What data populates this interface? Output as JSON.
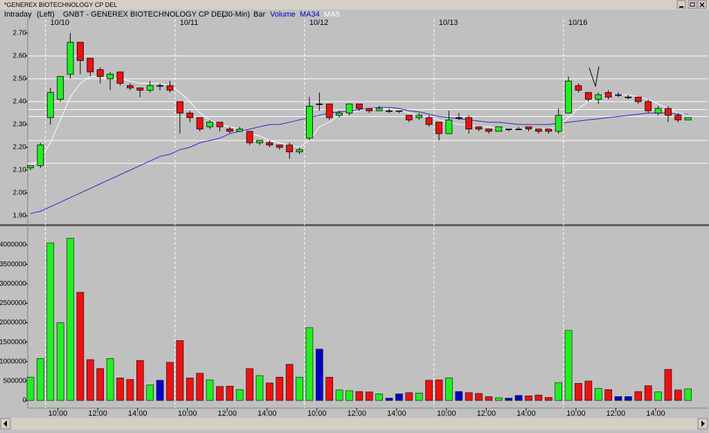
{
  "window_title": "*GENEREX BIOTECHNOLOGY CP DEL",
  "header": {
    "mode": "Intraday",
    "side": "(Left)",
    "symbol": "GNBT - GENEREX BIOTECHNOLOGY CP DEL",
    "interval": "(30-Min)",
    "style": "Bar"
  },
  "chart_data": [
    {
      "type": "candlestick",
      "day_labels": [
        "10/10",
        "10/11",
        "10/12",
        "10/13",
        "10/16"
      ],
      "open": [
        2.11,
        2.12,
        2.33,
        2.41,
        2.52,
        2.66,
        2.59,
        2.54,
        2.5,
        2.53,
        2.47,
        2.46,
        2.45,
        2.47,
        2.47,
        2.4,
        2.35,
        2.33,
        2.29,
        2.31,
        2.28,
        2.27,
        2.27,
        2.22,
        2.22,
        2.21,
        2.21,
        2.18,
        2.24,
        2.39,
        2.39,
        2.34,
        2.35,
        2.39,
        2.37,
        2.36,
        2.36,
        2.36,
        2.34,
        2.33,
        2.33,
        2.31,
        2.26,
        2.33,
        2.33,
        2.29,
        2.28,
        2.27,
        2.28,
        2.28,
        2.29,
        2.28,
        2.28,
        2.27,
        2.35,
        2.47,
        2.44,
        2.41,
        2.44,
        2.43,
        2.42,
        2.42,
        2.4,
        2.35,
        2.37,
        2.34,
        2.32
      ],
      "high": [
        2.12,
        2.22,
        2.46,
        2.51,
        2.7,
        2.66,
        2.59,
        2.55,
        2.53,
        2.53,
        2.48,
        2.46,
        2.49,
        2.48,
        2.49,
        2.4,
        2.36,
        2.33,
        2.32,
        2.31,
        2.29,
        2.29,
        2.27,
        2.23,
        2.23,
        2.21,
        2.22,
        2.2,
        2.42,
        2.44,
        2.39,
        2.36,
        2.39,
        2.39,
        2.37,
        2.38,
        2.37,
        2.36,
        2.34,
        2.35,
        2.34,
        2.31,
        2.36,
        2.35,
        2.34,
        2.29,
        2.28,
        2.29,
        2.28,
        2.29,
        2.29,
        2.28,
        2.28,
        2.37,
        2.51,
        2.48,
        2.44,
        2.44,
        2.45,
        2.44,
        2.43,
        2.42,
        2.41,
        2.38,
        2.38,
        2.35,
        2.33
      ],
      "low": [
        2.1,
        2.11,
        2.3,
        2.4,
        2.5,
        2.52,
        2.51,
        2.48,
        2.45,
        2.47,
        2.45,
        2.42,
        2.44,
        2.45,
        2.44,
        2.26,
        2.31,
        2.27,
        2.28,
        2.27,
        2.26,
        2.27,
        2.21,
        2.21,
        2.2,
        2.19,
        2.15,
        2.17,
        2.23,
        2.36,
        2.32,
        2.33,
        2.34,
        2.36,
        2.35,
        2.36,
        2.35,
        2.35,
        2.31,
        2.32,
        2.29,
        2.23,
        2.26,
        2.32,
        2.26,
        2.27,
        2.26,
        2.27,
        2.27,
        2.28,
        2.27,
        2.26,
        2.26,
        2.26,
        2.35,
        2.44,
        2.4,
        2.39,
        2.41,
        2.42,
        2.41,
        2.39,
        2.35,
        2.34,
        2.31,
        2.31,
        2.32
      ],
      "close": [
        2.12,
        2.21,
        2.44,
        2.51,
        2.66,
        2.58,
        2.53,
        2.51,
        2.52,
        2.48,
        2.46,
        2.45,
        2.47,
        2.47,
        2.45,
        2.35,
        2.33,
        2.28,
        2.31,
        2.29,
        2.27,
        2.28,
        2.22,
        2.23,
        2.21,
        2.2,
        2.18,
        2.19,
        2.38,
        2.39,
        2.33,
        2.35,
        2.39,
        2.37,
        2.36,
        2.37,
        2.36,
        2.36,
        2.32,
        2.34,
        2.3,
        2.26,
        2.32,
        2.33,
        2.28,
        2.28,
        2.27,
        2.29,
        2.28,
        2.28,
        2.28,
        2.27,
        2.27,
        2.34,
        2.49,
        2.45,
        2.41,
        2.43,
        2.42,
        2.43,
        2.42,
        2.4,
        2.36,
        2.37,
        2.34,
        2.32,
        2.33
      ],
      "up_color": "#22ee22",
      "down_color": "#ee1111",
      "flat_color": "#0000cc",
      "series": [
        {
          "name": "MA34",
          "color": "#2222cc",
          "values": [
            1.91,
            1.92,
            1.94,
            1.96,
            1.98,
            2.0,
            2.02,
            2.04,
            2.06,
            2.08,
            2.1,
            2.12,
            2.14,
            2.16,
            2.17,
            2.19,
            2.2,
            2.22,
            2.23,
            2.24,
            2.26,
            2.27,
            2.28,
            2.29,
            2.3,
            2.3,
            2.31,
            2.32,
            2.33,
            2.34,
            2.35,
            2.355,
            2.36,
            2.365,
            2.37,
            2.375,
            2.375,
            2.37,
            2.36,
            2.355,
            2.345,
            2.335,
            2.33,
            2.325,
            2.32,
            2.315,
            2.31,
            2.31,
            2.305,
            2.3,
            2.3,
            2.3,
            2.3,
            2.305,
            2.31,
            2.315,
            2.32,
            2.325,
            2.33,
            2.335,
            2.34,
            2.345,
            2.35,
            2.35,
            2.35,
            2.345,
            2.345
          ]
        },
        {
          "name": "MA5",
          "color": "#ffffff",
          "values": [
            2.12,
            2.15,
            2.22,
            2.32,
            2.42,
            2.48,
            2.51,
            2.51,
            2.5,
            2.5,
            2.49,
            2.48,
            2.48,
            2.48,
            2.47,
            2.44,
            2.4,
            2.35,
            2.32,
            2.3,
            2.29,
            2.28,
            2.26,
            2.25,
            2.23,
            2.22,
            2.21,
            2.2,
            2.23,
            2.29,
            2.31,
            2.34,
            2.35,
            2.36,
            2.37,
            2.37,
            2.37,
            2.36,
            2.35,
            2.34,
            2.33,
            2.32,
            2.31,
            2.3,
            2.3,
            2.29,
            2.29,
            2.28,
            2.28,
            2.28,
            2.28,
            2.28,
            2.28,
            2.29,
            2.33,
            2.37,
            2.4,
            2.42,
            2.43,
            2.43,
            2.43,
            2.42,
            2.41,
            2.39,
            2.37,
            2.35,
            2.34
          ]
        }
      ],
      "ylim": [
        1.87,
        2.76
      ],
      "yticks": [
        {
          "value": 1.9,
          "label": "1.90"
        },
        {
          "value": 2.0,
          "label": "2.00"
        },
        {
          "value": 2.1,
          "label": "2.10"
        },
        {
          "value": 2.2,
          "label": "2.20"
        },
        {
          "value": 2.3,
          "label": "2.30"
        },
        {
          "value": 2.4,
          "label": "2.40"
        },
        {
          "value": 2.5,
          "label": "2.50"
        },
        {
          "value": 2.6,
          "label": "2.60"
        },
        {
          "value": 2.7,
          "label": "2.70"
        }
      ],
      "horizontal_lines": [
        2.6,
        2.5,
        2.4,
        2.365,
        2.335,
        2.23,
        2.13
      ]
    },
    {
      "type": "bar",
      "series": [
        {
          "name": "Volume",
          "values": [
            600000,
            1080000,
            4050000,
            2000000,
            4170000,
            2780000,
            1050000,
            820000,
            1080000,
            580000,
            540000,
            1030000,
            400000,
            520000,
            980000,
            1540000,
            580000,
            700000,
            530000,
            360000,
            370000,
            280000,
            820000,
            640000,
            450000,
            600000,
            930000,
            600000,
            1870000,
            1320000,
            600000,
            270000,
            250000,
            230000,
            220000,
            170000,
            60000,
            170000,
            200000,
            190000,
            520000,
            530000,
            580000,
            230000,
            200000,
            180000,
            100000,
            70000,
            60000,
            130000,
            120000,
            140000,
            80000,
            460000,
            1800000,
            440000,
            500000,
            310000,
            280000,
            100000,
            100000,
            230000,
            380000,
            220000,
            800000,
            270000,
            300000
          ]
        }
      ],
      "ylim": [
        0,
        4400000
      ],
      "yticks": [
        0,
        500000,
        1000000,
        1500000,
        2000000,
        2500000,
        3000000,
        3500000,
        4000000
      ],
      "xtick_labels": [
        "10:00",
        "12:00",
        "14:00",
        "10:00",
        "12:00",
        "14:00",
        "10:00",
        "12:00",
        "14:00",
        "10:00",
        "12:00",
        "14:00",
        "10:00",
        "12:00",
        "14:00"
      ]
    }
  ]
}
